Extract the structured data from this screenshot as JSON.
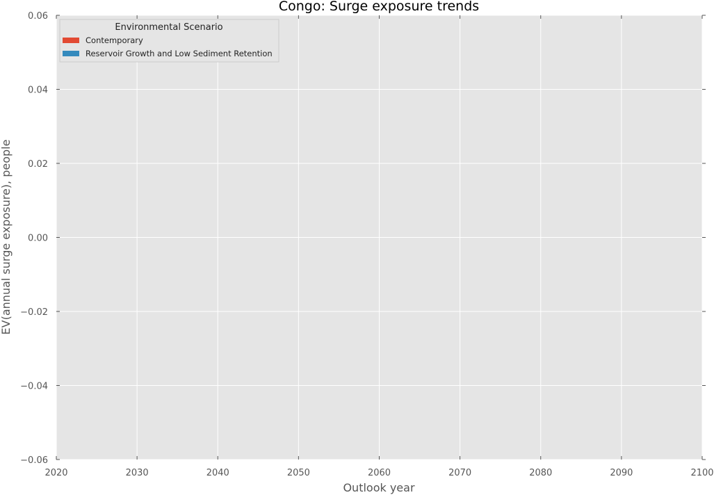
{
  "chart_data": {
    "type": "area",
    "title": "Congo: Surge exposure trends",
    "xlabel": "Outlook year",
    "ylabel": "EV(annual surge exposure), people",
    "xlim": [
      2020,
      2100
    ],
    "ylim": [
      -0.06,
      0.06
    ],
    "x_ticks": [
      2020,
      2030,
      2040,
      2050,
      2060,
      2070,
      2080,
      2090,
      2100
    ],
    "x_tick_labels": [
      "2020",
      "2030",
      "2040",
      "2050",
      "2060",
      "2070",
      "2080",
      "2090",
      "2100"
    ],
    "y_ticks": [
      -0.06,
      -0.04,
      -0.02,
      0.0,
      0.02,
      0.04,
      0.06
    ],
    "y_tick_labels": [
      "−0.06",
      "−0.04",
      "−0.02",
      "0.00",
      "0.02",
      "0.04",
      "0.06"
    ],
    "grid": true,
    "legend": {
      "title": "Environmental Scenario",
      "placement": "top-left",
      "entries": [
        {
          "label": "Contemporary",
          "color": "#E24A33"
        },
        {
          "label": "Reservoir Growth and Low Sediment Retention",
          "color": "#348ABD"
        }
      ]
    },
    "series": [
      {
        "name": "Contemporary",
        "color": "#E24A33",
        "x": [],
        "values": []
      },
      {
        "name": "Reservoir Growth and Low Sediment Retention",
        "color": "#348ABD",
        "x": [],
        "values": []
      }
    ],
    "colors": {
      "plot_background": "#E5E5E5",
      "grid": "#FFFFFF"
    }
  }
}
